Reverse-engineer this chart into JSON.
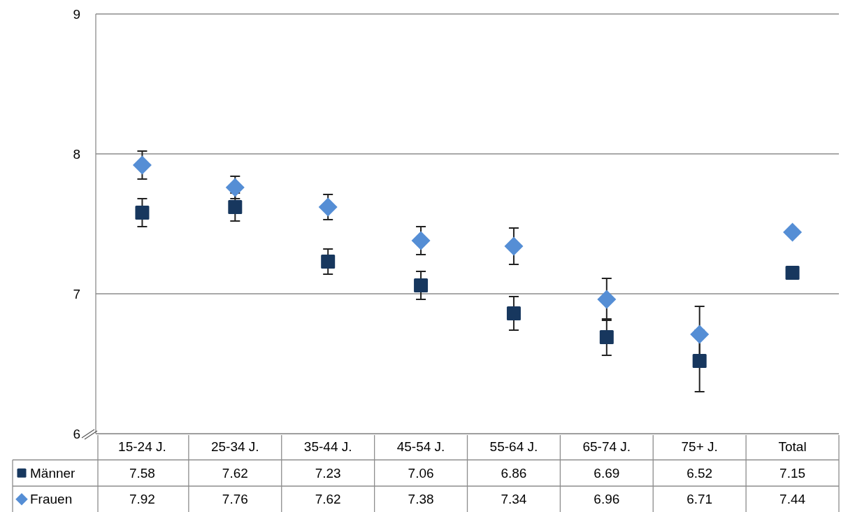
{
  "chart_data": {
    "type": "scatter",
    "categories": [
      "15-24 J.",
      "25-34 J.",
      "35-44 J.",
      "45-54 J.",
      "55-64 J.",
      "65-74 J.",
      "75+ J.",
      "Total"
    ],
    "series": [
      {
        "name": "Männer",
        "color": "#17375e",
        "marker": "square",
        "values": [
          7.58,
          7.62,
          7.23,
          7.06,
          6.86,
          6.69,
          6.52,
          7.15
        ],
        "errors": [
          0.1,
          0.1,
          0.09,
          0.1,
          0.12,
          0.13,
          0.22,
          null
        ]
      },
      {
        "name": "Frauen",
        "color": "#558ed5",
        "marker": "diamond",
        "values": [
          7.92,
          7.76,
          7.62,
          7.38,
          7.34,
          6.96,
          6.71,
          7.44
        ],
        "errors": [
          0.1,
          0.08,
          0.09,
          0.1,
          0.13,
          0.15,
          0.2,
          null
        ]
      }
    ],
    "ylim": [
      6,
      9
    ],
    "yticks": [
      6,
      7,
      8,
      9
    ],
    "grid": "y",
    "legend": "bottom",
    "data_labels": true
  }
}
